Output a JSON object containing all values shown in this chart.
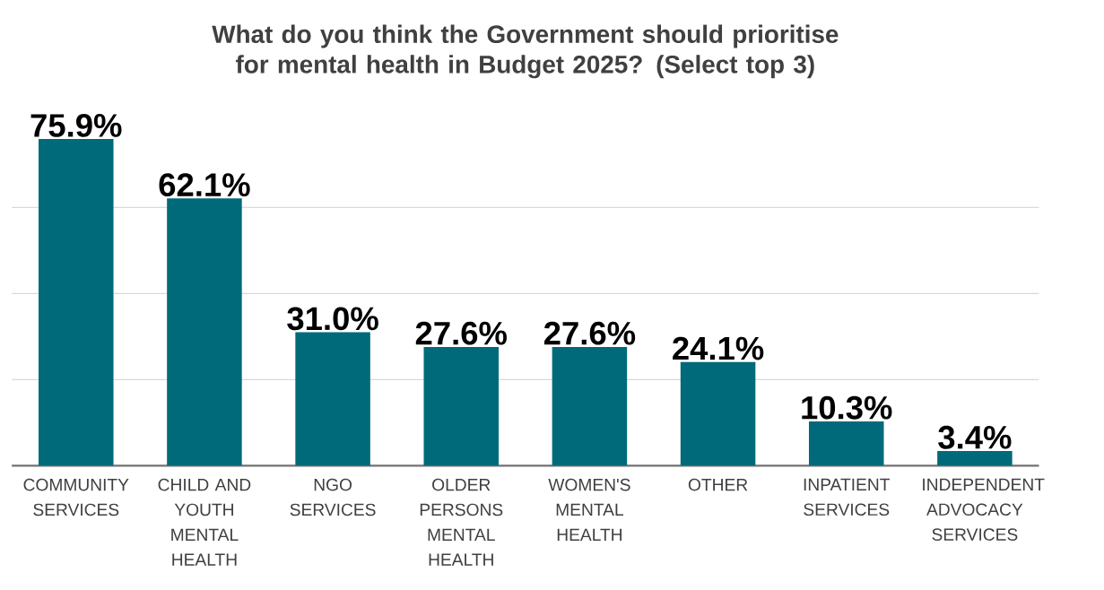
{
  "chart_data": {
    "type": "bar",
    "title": "What do you think the Government should prioritise for mental health in Budget 2025? (Select top 3)",
    "categories": [
      "COMMUNITY SERVICES",
      "CHILD AND YOUTH MENTAL HEALTH",
      "NGO SERVICES",
      "OLDER PERSONS MENTAL HEALTH",
      "WOMEN'S MENTAL HEALTH",
      "OTHER",
      "INPATIENT SERVICES",
      "INDEPENDENT ADVOCACY SERVICES"
    ],
    "values": [
      75.9,
      62.1,
      31.0,
      27.6,
      27.6,
      24.1,
      10.3,
      3.4
    ],
    "value_labels": [
      "75.9%",
      "62.1%",
      "31.0%",
      "27.6%",
      "27.6%",
      "24.1%",
      "10.3%",
      "3.4%"
    ],
    "color": "#006a7b",
    "grid": "y",
    "tick_labels": "x"
  }
}
